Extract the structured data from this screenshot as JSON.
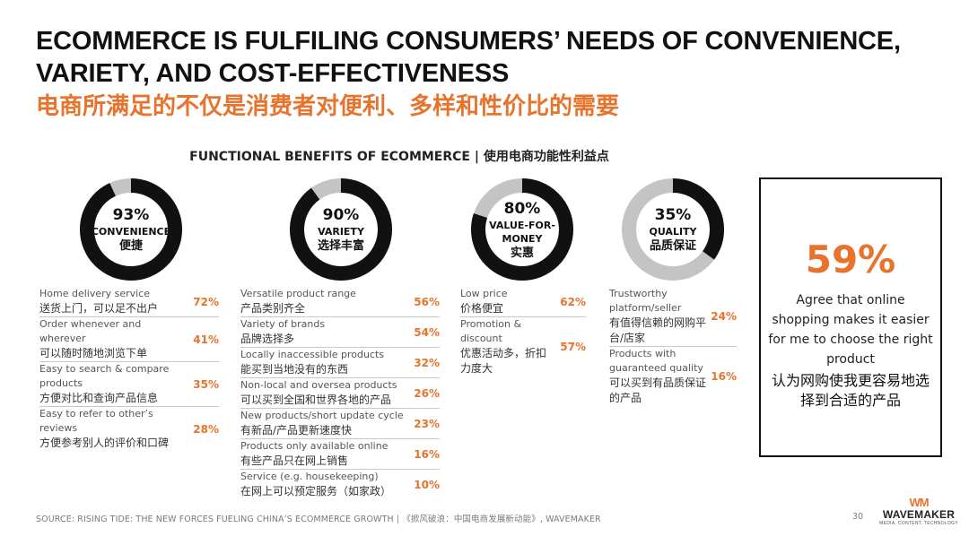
{
  "header": {
    "title_line1": "ECOMMERCE IS FULFILING CONSUMERS’ NEEDS OF CONVENIENCE,",
    "title_line2": "VARIETY, AND COST-EFFECTIVENESS",
    "title_cn": "电商所满足的不仅是消费者对便利、多样和性价比的需要"
  },
  "section": {
    "title": "FUNCTIONAL BENEFITS OF ECOMMERCE | 使用电商功能性利益点"
  },
  "colors": {
    "accent": "#e8732c",
    "ring_fill": "#111111",
    "ring_track": "#c4c4c4"
  },
  "chart_data": {
    "type": "pie",
    "variant": "donut",
    "categories": [
      "CONVENIENCE 便捷",
      "VARIETY 选择丰富",
      "VALUE-FOR-MONEY 实惠",
      "QUALITY 品质保证"
    ],
    "values": [
      93,
      90,
      80,
      35
    ],
    "unit": "%"
  },
  "donuts": [
    {
      "pct": "93%",
      "value": 93,
      "label": "CONVENIENCE",
      "label_cn": "便捷"
    },
    {
      "pct": "90%",
      "value": 90,
      "label": "VARIETY",
      "label_cn": "选择丰富"
    },
    {
      "pct": "80%",
      "value": 80,
      "label": "VALUE-FOR-MONEY",
      "label_line1": "VALUE-FOR-",
      "label_line2": "MONEY",
      "label_cn": "实惠"
    },
    {
      "pct": "35%",
      "value": 35,
      "label": "QUALITY",
      "label_cn": "品质保证"
    }
  ],
  "columns": [
    {
      "rows": [
        {
          "en": "Home delivery service",
          "cn": "送货上门，可以足不出户",
          "pct": "72%"
        },
        {
          "en": "Order whenever and wherever",
          "cn": "可以随时随地浏览下单",
          "pct": "41%"
        },
        {
          "en": "Easy to search & compare products",
          "cn": "方便对比和查询产品信息",
          "pct": "35%"
        },
        {
          "en": "Easy to refer to other’s reviews",
          "cn": "方便参考别人的评价和口碑",
          "pct": "28%"
        }
      ]
    },
    {
      "rows": [
        {
          "en": "Versatile product range",
          "cn": "产品类别齐全",
          "pct": "56%"
        },
        {
          "en": "Variety of brands",
          "cn": "品牌选择多",
          "pct": "54%"
        },
        {
          "en": "Locally inaccessible products",
          "cn": "能买到当地没有的东西",
          "pct": "32%"
        },
        {
          "en": "Non-local and oversea products",
          "cn": "可以买到全国和世界各地的产品",
          "pct": "26%"
        },
        {
          "en": "New products/short update cycle",
          "cn": "有新品/产品更新速度快",
          "pct": "23%"
        },
        {
          "en": "Products only available online",
          "cn": "有些产品只在网上销售",
          "pct": "16%"
        },
        {
          "en": "Service (e.g. housekeeping)",
          "cn": "在网上可以预定服务（如家政）",
          "pct": "10%"
        }
      ]
    },
    {
      "rows": [
        {
          "en": "Low price",
          "cn": "价格便宜",
          "pct": "62%"
        },
        {
          "en": "Promotion & discount",
          "cn": "优惠活动多，折扣力度大",
          "pct": "57%"
        }
      ]
    },
    {
      "rows": [
        {
          "en": "Trustworthy platform/seller",
          "cn": "有值得信赖的网购平台/店家",
          "pct": "24%"
        },
        {
          "en": "Products with guaranteed quality",
          "cn": "可以买到有品质保证的产品",
          "pct": "16%"
        }
      ]
    }
  ],
  "callout": {
    "pct": "59%",
    "en": "Agree that online shopping makes it easier for me to choose the right product",
    "cn": "认为网购使我更容易地选择到合适的产品"
  },
  "footer": {
    "source": "SOURCE: RISING TIDE: THE NEW FORCES FUELING CHINA’S ECOMMERCE GROWTH | 《掀风破浪：中国电商发展新动能》, WAVEMAKER",
    "page": "30",
    "logo_mark": "WM",
    "logo_name": "WAVEMAKER",
    "logo_tag": "MEDIA. CONTENT. TECHNOLOGY"
  }
}
